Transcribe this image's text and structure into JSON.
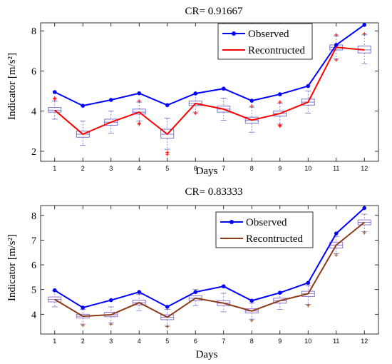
{
  "chart_data": [
    {
      "type": "line",
      "title": "CR= 0.91667",
      "xlabel": "Days",
      "ylabel": "Indicator [m/s²]",
      "x": [
        1,
        2,
        3,
        4,
        5,
        6,
        7,
        8,
        9,
        10,
        11,
        12
      ],
      "xlim": [
        0.5,
        12.5
      ],
      "ylim": [
        1.5,
        8.4
      ],
      "yticks": [
        2,
        4,
        6,
        8
      ],
      "grid": false,
      "legend_position": "top-right",
      "series": [
        {
          "name": "Observed",
          "color": "#0000ff",
          "marker": "dot",
          "values": [
            4.95,
            4.27,
            4.56,
            4.89,
            4.3,
            4.88,
            5.12,
            4.52,
            4.84,
            5.25,
            7.3,
            8.3
          ]
        },
        {
          "name": "Recontructed",
          "color": "#ff0000",
          "marker": "none",
          "values": [
            4.05,
            2.85,
            3.45,
            3.95,
            2.85,
            4.38,
            4.1,
            3.55,
            3.88,
            4.45,
            7.18,
            7.05
          ]
        }
      ],
      "boxes": {
        "color": "#6666cc",
        "outlier_color": "#ff0000",
        "items": [
          {
            "q1": 3.95,
            "median": 4.05,
            "q3": 4.18,
            "whisker_low": 3.6,
            "whisker_high": 4.5,
            "outliers": [
              4.6,
              4.65
            ]
          },
          {
            "q1": 2.7,
            "median": 2.85,
            "q3": 3.0,
            "whisker_low": 2.3,
            "whisker_high": 3.5,
            "outliers": []
          },
          {
            "q1": 3.3,
            "median": 3.45,
            "q3": 3.6,
            "whisker_low": 2.9,
            "whisker_high": 4.0,
            "outliers": []
          },
          {
            "q1": 3.85,
            "median": 3.95,
            "q3": 4.1,
            "whisker_low": 3.5,
            "whisker_high": 4.45,
            "outliers": [
              3.35,
              3.4,
              4.5
            ]
          },
          {
            "q1": 2.65,
            "median": 2.85,
            "q3": 3.1,
            "whisker_low": 2.1,
            "whisker_high": 3.65,
            "outliers": [
              1.85,
              1.95
            ]
          },
          {
            "q1": 4.28,
            "median": 4.38,
            "q3": 4.5,
            "whisker_low": 3.95,
            "whisker_high": 4.85,
            "outliers": [
              3.9,
              4.9
            ]
          },
          {
            "q1": 3.95,
            "median": 4.1,
            "q3": 4.25,
            "whisker_low": 3.55,
            "whisker_high": 4.65,
            "outliers": []
          },
          {
            "q1": 3.4,
            "median": 3.55,
            "q3": 3.7,
            "whisker_low": 2.95,
            "whisker_high": 4.2,
            "outliers": [
              4.25
            ]
          },
          {
            "q1": 3.75,
            "median": 3.88,
            "q3": 4.0,
            "whisker_low": 3.35,
            "whisker_high": 4.4,
            "outliers": [
              3.25,
              3.3,
              4.45
            ]
          },
          {
            "q1": 4.3,
            "median": 4.45,
            "q3": 4.6,
            "whisker_low": 3.9,
            "whisker_high": 5.0,
            "outliers": []
          },
          {
            "q1": 7.05,
            "median": 7.18,
            "q3": 7.3,
            "whisker_low": 6.6,
            "whisker_high": 7.75,
            "outliers": [
              6.55,
              7.8
            ]
          },
          {
            "q1": 6.9,
            "median": 7.05,
            "q3": 7.25,
            "whisker_low": 6.35,
            "whisker_high": 7.8,
            "outliers": [
              7.85
            ]
          }
        ]
      }
    },
    {
      "type": "line",
      "title": "CR= 0.83333",
      "xlabel": "Days",
      "ylabel": "Indicator [m/s²]",
      "x": [
        1,
        2,
        3,
        4,
        5,
        6,
        7,
        8,
        9,
        10,
        11,
        12
      ],
      "xlim": [
        0.5,
        12.5
      ],
      "ylim": [
        3.2,
        8.4
      ],
      "yticks": [
        4,
        5,
        6,
        7,
        8
      ],
      "grid": false,
      "legend_position": "top-right",
      "series": [
        {
          "name": "Observed",
          "color": "#0000ff",
          "marker": "dot",
          "values": [
            4.97,
            4.27,
            4.57,
            4.9,
            4.3,
            4.9,
            5.13,
            4.55,
            4.87,
            5.27,
            7.27,
            8.3
          ]
        },
        {
          "name": "Recontructed",
          "color": "#8b3a1a",
          "marker": "none",
          "values": [
            4.6,
            3.92,
            3.98,
            4.47,
            3.88,
            4.65,
            4.45,
            4.13,
            4.55,
            4.83,
            6.8,
            7.72
          ]
        }
      ],
      "boxes": {
        "color": "#8866cc",
        "outlier_color": "#8b4513",
        "items": [
          {
            "q1": 4.5,
            "median": 4.6,
            "q3": 4.7,
            "whisker_low": 4.3,
            "whisker_high": 4.95,
            "outliers": []
          },
          {
            "q1": 3.85,
            "median": 3.92,
            "q3": 4.0,
            "whisker_low": 3.6,
            "whisker_high": 4.2,
            "outliers": [
              3.55
            ]
          },
          {
            "q1": 3.9,
            "median": 3.98,
            "q3": 4.08,
            "whisker_low": 3.65,
            "whisker_high": 4.3,
            "outliers": [
              3.6
            ]
          },
          {
            "q1": 4.38,
            "median": 4.47,
            "q3": 4.57,
            "whisker_low": 4.15,
            "whisker_high": 4.8,
            "outliers": []
          },
          {
            "q1": 3.78,
            "median": 3.88,
            "q3": 3.98,
            "whisker_low": 3.55,
            "whisker_high": 4.2,
            "outliers": [
              3.5
            ]
          },
          {
            "q1": 4.55,
            "median": 4.65,
            "q3": 4.75,
            "whisker_low": 4.35,
            "whisker_high": 5.0,
            "outliers": []
          },
          {
            "q1": 4.35,
            "median": 4.45,
            "q3": 4.55,
            "whisker_low": 4.1,
            "whisker_high": 4.85,
            "outliers": []
          },
          {
            "q1": 4.05,
            "median": 4.13,
            "q3": 4.22,
            "whisker_low": 3.8,
            "whisker_high": 4.45,
            "outliers": [
              3.75
            ]
          },
          {
            "q1": 4.45,
            "median": 4.55,
            "q3": 4.65,
            "whisker_low": 4.2,
            "whisker_high": 4.85,
            "outliers": []
          },
          {
            "q1": 4.72,
            "median": 4.83,
            "q3": 4.93,
            "whisker_low": 4.4,
            "whisker_high": 5.15,
            "outliers": [
              4.35
            ]
          },
          {
            "q1": 6.68,
            "median": 6.8,
            "q3": 6.92,
            "whisker_low": 6.45,
            "whisker_high": 7.15,
            "outliers": [
              6.4
            ]
          },
          {
            "q1": 7.62,
            "median": 7.72,
            "q3": 7.82,
            "whisker_low": 7.35,
            "whisker_high": 8.05,
            "outliers": [
              7.3
            ]
          }
        ]
      }
    }
  ]
}
